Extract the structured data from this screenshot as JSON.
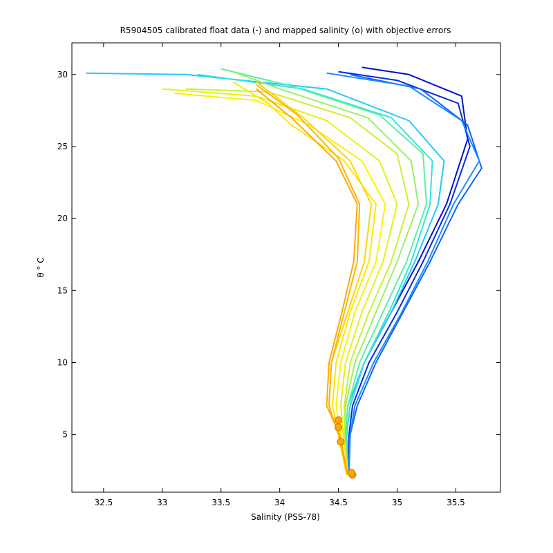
{
  "chart_data": {
    "type": "line",
    "title": "R5904505 calibrated float data (-) and mapped salinity (o) with objective errors",
    "xlabel": "Salinity (PSS-78)",
    "ylabel": "θ ° C",
    "xlim": [
      32.23,
      35.88
    ],
    "ylim": [
      1.0,
      32.2
    ],
    "x_ticks": [
      32.5,
      33,
      33.5,
      34,
      34.5,
      35,
      35.5
    ],
    "x_tick_labels": [
      "32.5",
      "33",
      "33.5",
      "34",
      "34.5",
      "35",
      "35.5"
    ],
    "y_ticks": [
      5,
      10,
      15,
      20,
      25,
      30
    ],
    "y_tick_labels": [
      "5",
      "10",
      "15",
      "20",
      "25",
      "30"
    ],
    "grid": false,
    "legend": "none",
    "colormap": [
      "#0000c8",
      "#0a3cf0",
      "#1482ff",
      "#1ec8ff",
      "#2ce6dc",
      "#50f0a0",
      "#96f064",
      "#d2f032",
      "#fff000",
      "#ffc800",
      "#ffa800"
    ],
    "series": [
      {
        "color": "#0010cc",
        "x": [
          34.57,
          34.57,
          34.6,
          34.72,
          34.95,
          35.18,
          35.42,
          35.6,
          35.55,
          35.1,
          34.7
        ],
        "y": [
          2.2,
          5.0,
          7.0,
          10.0,
          13.5,
          17.0,
          21.0,
          25.5,
          28.5,
          30.0,
          30.5
        ]
      },
      {
        "color": "#0028e6",
        "x": [
          34.58,
          34.59,
          34.62,
          34.76,
          35.0,
          35.22,
          35.45,
          35.62,
          35.52,
          35.0,
          34.5
        ],
        "y": [
          2.2,
          5.0,
          7.0,
          10.0,
          13.5,
          17.0,
          21.0,
          25.0,
          28.0,
          29.6,
          30.2
        ]
      },
      {
        "color": "#1060ff",
        "x": [
          34.58,
          34.6,
          34.66,
          34.82,
          35.05,
          35.28,
          35.52,
          35.72,
          35.6,
          35.2,
          34.6
        ],
        "y": [
          2.2,
          5.0,
          7.0,
          10.0,
          13.5,
          17.0,
          21.0,
          23.5,
          26.5,
          29.0,
          30.0
        ]
      },
      {
        "color": "#1a8cff",
        "x": [
          34.59,
          34.6,
          34.64,
          34.8,
          35.04,
          35.26,
          35.48,
          35.7,
          35.55,
          35.1,
          34.4
        ],
        "y": [
          2.2,
          5.0,
          7.0,
          10.0,
          13.5,
          17.0,
          21.0,
          24.0,
          26.8,
          29.2,
          30.1
        ]
      },
      {
        "color": "#22c8ff",
        "x": [
          34.57,
          34.56,
          34.58,
          34.72,
          34.95,
          35.15,
          35.35,
          35.4,
          35.1,
          34.4,
          33.2,
          32.35
        ],
        "y": [
          2.2,
          5.0,
          7.0,
          10.0,
          13.5,
          17.0,
          21.0,
          24.0,
          26.8,
          29.0,
          30.0,
          30.1
        ]
      },
      {
        "color": "#30e6dc",
        "x": [
          34.58,
          34.57,
          34.6,
          34.72,
          34.93,
          35.12,
          35.28,
          35.3,
          34.95,
          34.2,
          33.3
        ],
        "y": [
          2.2,
          5.0,
          7.0,
          10.0,
          13.5,
          17.0,
          21.0,
          24.0,
          27.0,
          29.0,
          30.0
        ]
      },
      {
        "color": "#5af0a0",
        "x": [
          34.58,
          34.56,
          34.58,
          34.68,
          34.88,
          35.08,
          35.25,
          35.22,
          34.85,
          34.1,
          33.5
        ],
        "y": [
          2.2,
          5.0,
          7.0,
          10.0,
          13.5,
          17.0,
          21.0,
          24.5,
          27.2,
          29.2,
          30.4
        ]
      },
      {
        "color": "#96f064",
        "x": [
          34.58,
          34.55,
          34.56,
          34.64,
          34.82,
          35.0,
          35.18,
          35.12,
          34.75,
          34.0,
          33.6
        ],
        "y": [
          2.2,
          5.0,
          7.0,
          10.0,
          13.5,
          17.0,
          21.0,
          24.0,
          27.0,
          29.0,
          30.2
        ]
      },
      {
        "color": "#c8f032",
        "x": [
          34.58,
          34.55,
          34.55,
          34.6,
          34.76,
          34.95,
          35.1,
          35.0,
          34.6,
          33.9,
          33.2
        ],
        "y": [
          2.2,
          5.0,
          7.0,
          10.0,
          13.5,
          17.0,
          21.0,
          24.5,
          27.0,
          28.8,
          29.0
        ]
      },
      {
        "color": "#e6f014",
        "x": [
          34.58,
          34.54,
          34.52,
          34.56,
          34.7,
          34.88,
          35.0,
          34.85,
          34.4,
          33.8,
          33.0
        ],
        "y": [
          2.2,
          5.0,
          7.0,
          10.0,
          13.5,
          17.0,
          21.0,
          24.0,
          26.8,
          28.5,
          29.0
        ]
      },
      {
        "color": "#fff000",
        "x": [
          34.57,
          34.52,
          34.48,
          34.52,
          34.64,
          34.82,
          34.9,
          34.7,
          34.25,
          33.8,
          33.1
        ],
        "y": [
          2.2,
          5.0,
          7.0,
          10.0,
          13.5,
          17.0,
          21.0,
          24.0,
          26.5,
          28.2,
          28.7
        ]
      },
      {
        "color": "#ffe600",
        "x": [
          34.57,
          34.5,
          34.45,
          34.48,
          34.6,
          34.76,
          34.82,
          34.55,
          34.1,
          33.9,
          33.6
        ],
        "y": [
          2.2,
          5.0,
          7.0,
          10.0,
          13.5,
          17.0,
          21.0,
          24.0,
          26.5,
          28.0,
          29.5
        ]
      },
      {
        "color": "#ffd200",
        "x": [
          34.57,
          34.5,
          34.42,
          34.44,
          34.58,
          34.72,
          34.78,
          34.6,
          34.2,
          33.8
        ],
        "y": [
          2.2,
          5.0,
          7.0,
          10.0,
          13.5,
          17.0,
          21.0,
          24.0,
          27.0,
          29.5
        ]
      },
      {
        "color": "#ffb400",
        "x": [
          34.58,
          34.5,
          34.42,
          34.44,
          34.55,
          34.66,
          34.68,
          34.5,
          34.15,
          33.8
        ],
        "y": [
          2.2,
          5.0,
          7.0,
          10.0,
          13.5,
          17.0,
          21.0,
          24.2,
          27.2,
          29.3
        ]
      },
      {
        "color": "#ffa800",
        "x": [
          34.58,
          34.51,
          34.4,
          34.42,
          34.53,
          34.63,
          34.66,
          34.48,
          34.1,
          33.8
        ],
        "y": [
          2.2,
          5.0,
          7.0,
          10.0,
          13.5,
          17.0,
          21.0,
          24.0,
          27.0,
          29.0
        ]
      }
    ],
    "mapped_points": [
      {
        "x": 34.62,
        "y": 2.2
      },
      {
        "x": 34.61,
        "y": 2.35
      },
      {
        "x": 34.52,
        "y": 4.5
      },
      {
        "x": 34.5,
        "y": 5.5
      },
      {
        "x": 34.5,
        "y": 6.0
      }
    ]
  }
}
